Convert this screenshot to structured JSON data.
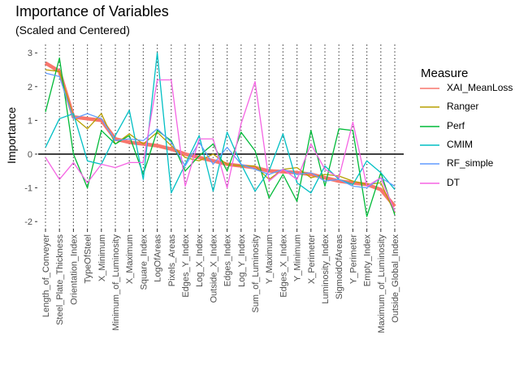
{
  "chart_data": {
    "type": "line",
    "title": "Importance of Variables",
    "subtitle": "(Scaled and Centered)",
    "xlabel": "",
    "ylabel": "Importance",
    "ylim": [
      -2.2,
      3.1
    ],
    "yticks": [
      -2,
      -1,
      0,
      1,
      2,
      3
    ],
    "hline": 0,
    "grid": "vertical dotted",
    "legend_title": "Measure",
    "legend_position": "right",
    "categories": [
      "Length_of_Conveyer",
      "Steel_Plate_Thickness",
      "Orientation_Index",
      "TypeOfSteel",
      "X_Minimum",
      "Minimum_of_Luminosity",
      "X_Maximum",
      "Square_Index",
      "LogOfAreas",
      "Pixels_Areas",
      "Edges_Y_Index",
      "Log_X_Index",
      "Outside_X_Index",
      "Edges_Index",
      "Log_Y_Index",
      "Sum_of_Luminosity",
      "Y_Maximum",
      "Edges_X_Index",
      "Y_Minimum",
      "X_Perimeter",
      "Luminosity_Index",
      "SigmoidOfAreas",
      "Y_Perimeter",
      "Empty_Index",
      "Maximum_of_Luminosity",
      "Outside_Global_Index"
    ],
    "series": [
      {
        "name": "XAI_MeanLoss",
        "color": "#F8766D",
        "values": [
          2.7,
          2.45,
          1.1,
          1.05,
          1.0,
          0.45,
          0.35,
          0.3,
          0.25,
          0.15,
          0.0,
          -0.1,
          -0.2,
          -0.3,
          -0.35,
          -0.4,
          -0.5,
          -0.52,
          -0.55,
          -0.6,
          -0.7,
          -0.8,
          -0.85,
          -0.9,
          -1.05,
          -1.55
        ]
      },
      {
        "name": "Ranger",
        "color": "#B79F00",
        "values": [
          2.5,
          2.45,
          1.1,
          0.75,
          1.2,
          0.3,
          0.6,
          0.3,
          0.65,
          0.25,
          -0.1,
          -0.2,
          0.0,
          -0.3,
          -0.35,
          -0.35,
          -0.75,
          -0.45,
          -0.4,
          -0.7,
          -0.6,
          -0.65,
          -0.8,
          -0.9,
          -0.85,
          -1.75
        ]
      },
      {
        "name": "Perf",
        "color": "#00BA38",
        "values": [
          1.25,
          2.85,
          0.0,
          -1.0,
          0.7,
          0.3,
          0.55,
          -0.6,
          0.7,
          0.4,
          -0.5,
          -0.05,
          0.3,
          -0.5,
          0.65,
          0.1,
          -1.3,
          -0.6,
          -1.4,
          0.7,
          -0.95,
          0.75,
          0.7,
          -1.85,
          -0.55,
          -1.8
        ]
      },
      {
        "name": "CMIM",
        "color": "#00BFC4",
        "values": [
          0.2,
          1.05,
          1.2,
          -0.2,
          -0.3,
          0.55,
          1.3,
          -0.75,
          3.0,
          -1.15,
          -0.3,
          0.55,
          -1.1,
          0.65,
          -0.3,
          -1.1,
          -0.5,
          0.6,
          -0.85,
          -1.15,
          -0.35,
          -0.75,
          -0.9,
          -0.2,
          -0.55,
          -1.05
        ]
      },
      {
        "name": "RF_simple",
        "color": "#619CFF",
        "values": [
          2.4,
          2.3,
          1.05,
          1.2,
          1.05,
          0.4,
          0.45,
          0.4,
          0.75,
          0.35,
          -0.35,
          0.35,
          -0.3,
          0.2,
          -0.3,
          -0.45,
          -0.6,
          -0.45,
          -0.6,
          -0.55,
          -0.8,
          -0.75,
          -0.95,
          -1.0,
          -0.7,
          -0.95
        ]
      },
      {
        "name": "DT",
        "color": "#F564E3",
        "values": [
          -0.1,
          -0.75,
          -0.25,
          -0.85,
          -0.3,
          -0.4,
          -0.25,
          -0.25,
          2.2,
          2.2,
          -0.95,
          0.45,
          0.45,
          -1.0,
          0.9,
          2.15,
          -0.8,
          -0.45,
          -0.75,
          0.3,
          -0.45,
          -0.7,
          0.95,
          -0.95,
          -0.7,
          -1.7
        ]
      }
    ]
  }
}
